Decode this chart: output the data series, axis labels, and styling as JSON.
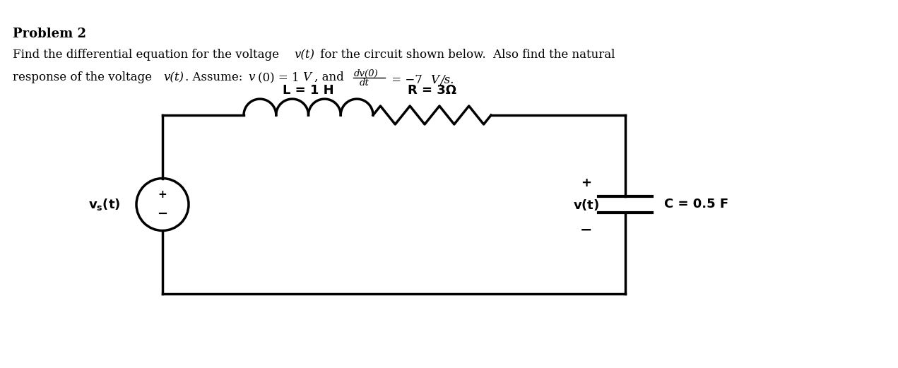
{
  "bg_color": "#ffffff",
  "text_color": "#000000",
  "circuit_color": "#000000",
  "lw": 2.5,
  "title": "Problem 2",
  "L_label": "L = 1 H",
  "R_label": "R = 3Ω",
  "C_label": "C = 0.5 F",
  "plus": "+",
  "minus": "−",
  "frac_num": "dv(0)",
  "frac_den": "dt",
  "eq_rhs": " = −7",
  "eq_V": "V",
  "eq_slash_s": "/s."
}
